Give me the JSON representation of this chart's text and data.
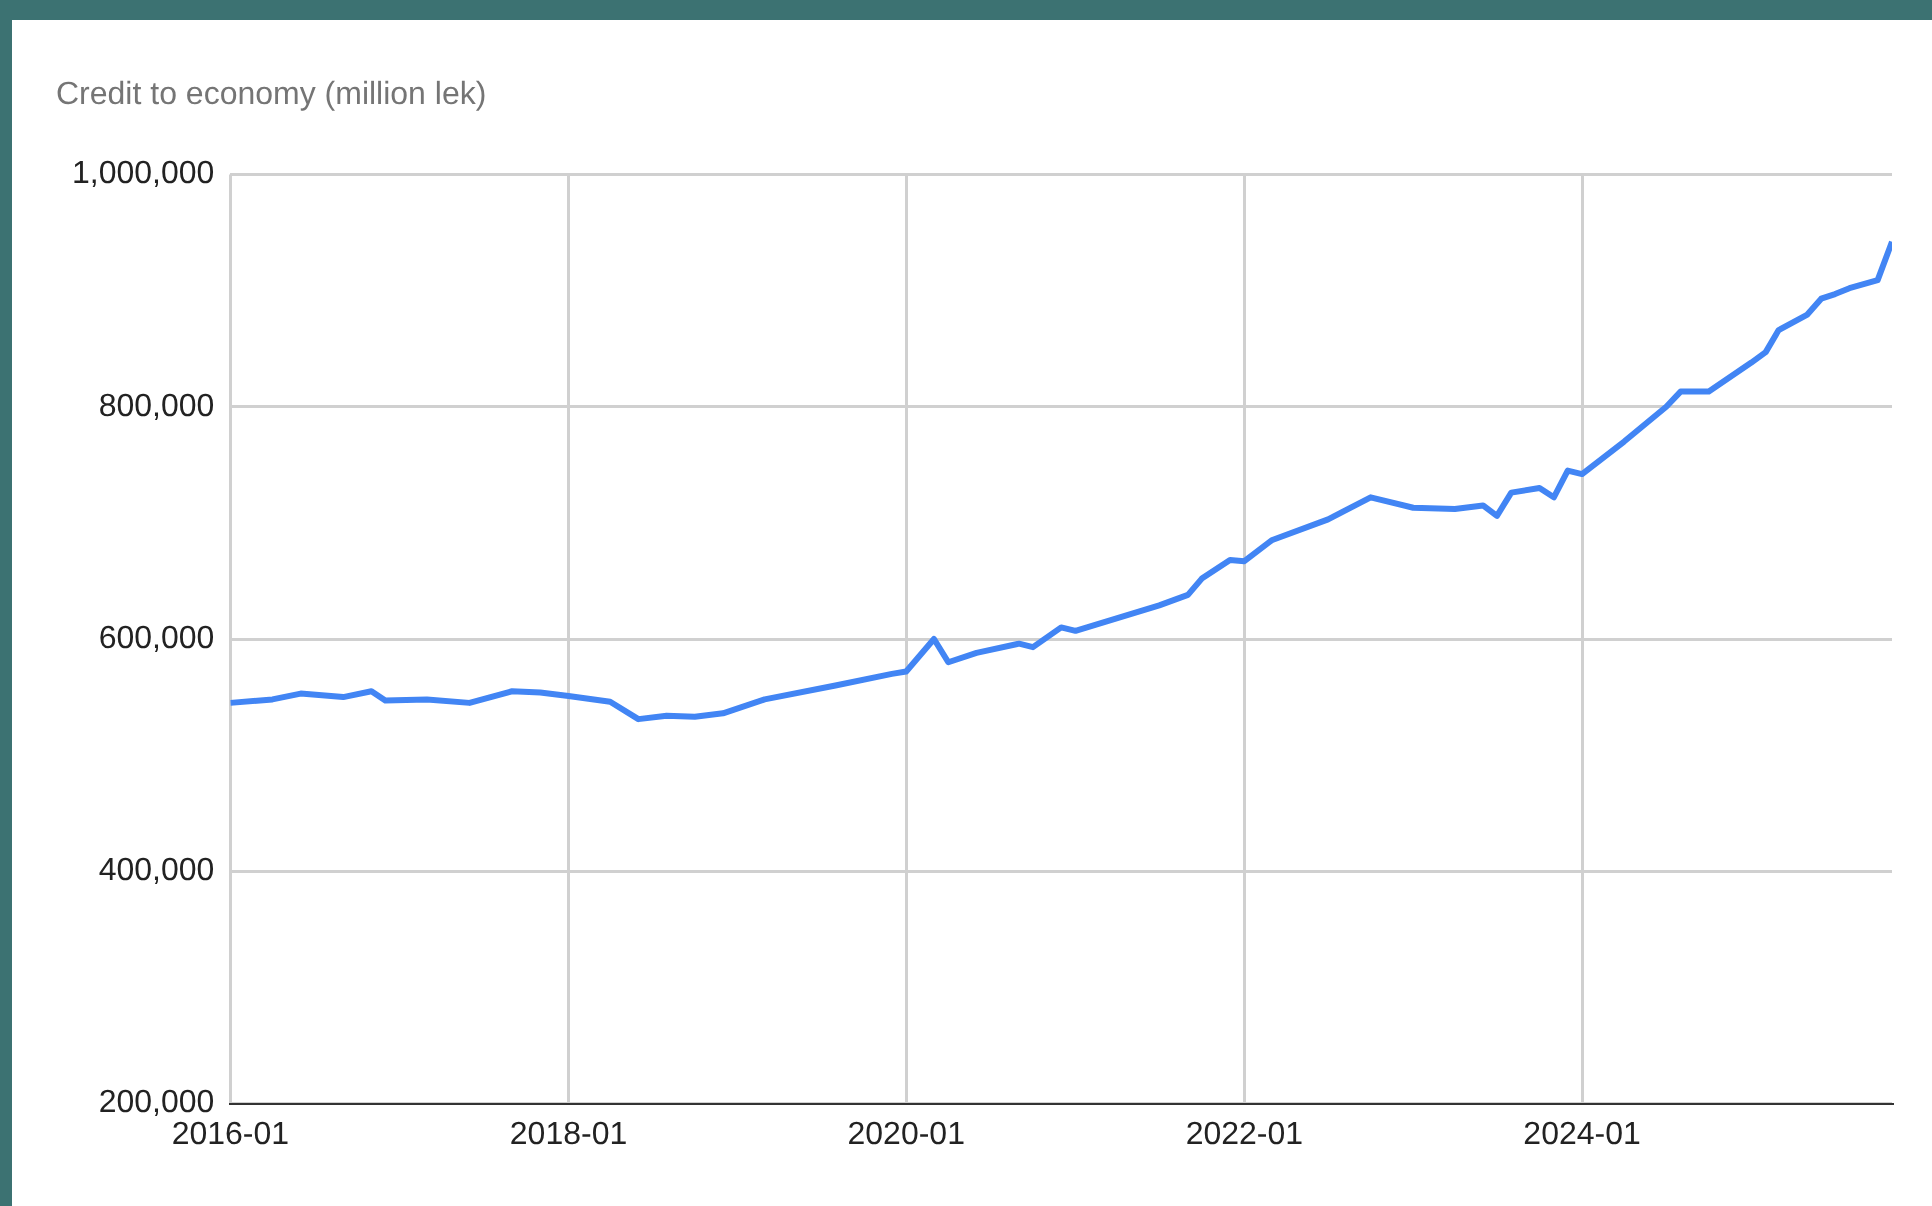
{
  "chart_data": {
    "type": "line",
    "title": "Credit to economy (million lek)",
    "x": [
      "2016-01",
      "2016-04",
      "2016-06",
      "2016-09",
      "2016-11",
      "2016-12",
      "2017-03",
      "2017-06",
      "2017-09",
      "2017-11",
      "2018-01",
      "2018-04",
      "2018-06",
      "2018-08",
      "2018-10",
      "2018-12",
      "2019-03",
      "2019-08",
      "2019-12",
      "2020-01",
      "2020-03",
      "2020-04",
      "2020-06",
      "2020-09",
      "2020-10",
      "2020-12",
      "2021-01",
      "2021-07",
      "2021-09",
      "2021-10",
      "2021-12",
      "2022-01",
      "2022-03",
      "2022-07",
      "2022-10",
      "2023-01",
      "2023-04",
      "2023-06",
      "2023-07",
      "2023-08",
      "2023-10",
      "2023-11",
      "2023-12",
      "2024-01",
      "2024-04",
      "2024-07",
      "2024-08",
      "2024-10",
      "2025-01",
      "2025-02",
      "2025-03",
      "2025-05",
      "2025-06",
      "2025-07",
      "2025-08",
      "2025-10",
      "2025-11"
    ],
    "series": [
      {
        "color": "#4285f4",
        "values": [
          545000,
          548000,
          553000,
          550000,
          555000,
          547000,
          548000,
          545000,
          555000,
          554000,
          551000,
          546000,
          531000,
          534000,
          533000,
          536000,
          548000,
          560000,
          570000,
          572000,
          600000,
          580000,
          588000,
          596000,
          593000,
          610000,
          607000,
          629000,
          638000,
          652000,
          668000,
          667000,
          685000,
          703000,
          722000,
          713000,
          712000,
          715000,
          706000,
          726000,
          730000,
          722000,
          745000,
          742000,
          770000,
          800000,
          813000,
          813000,
          838000,
          847000,
          866000,
          879000,
          893000,
          897000,
          902000,
          909000,
          942000
        ]
      }
    ],
    "xlim": [
      "2016-01",
      "2025-11"
    ],
    "xticks": [
      "2016-01",
      "2018-01",
      "2020-01",
      "2022-01",
      "2024-01"
    ],
    "ylim": [
      200000,
      1000000
    ],
    "yticks": [
      {
        "value": 200000,
        "label": "200,000"
      },
      {
        "value": 400000,
        "label": "400,000"
      },
      {
        "value": 600000,
        "label": "600,000"
      },
      {
        "value": 800000,
        "label": "800,000"
      },
      {
        "value": 1000000,
        "label": "1,000,000"
      }
    ],
    "grid": true,
    "legend": false,
    "marker": "none",
    "line_style": "solid"
  }
}
